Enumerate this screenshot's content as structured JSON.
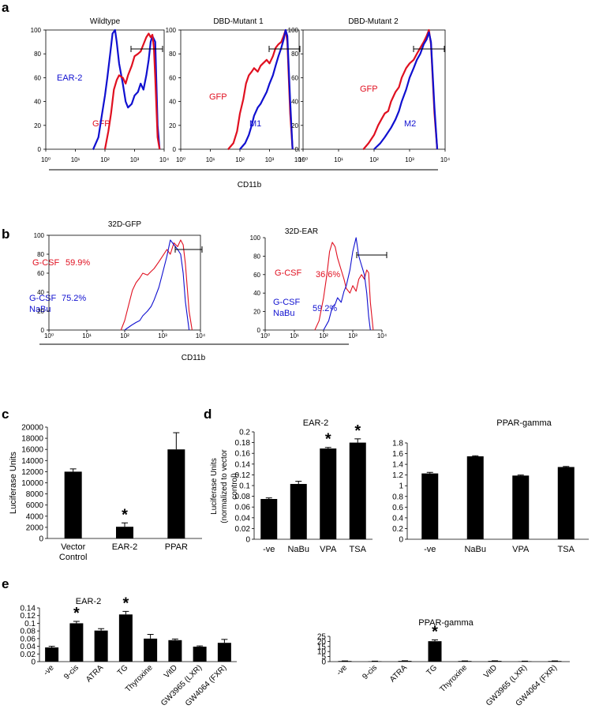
{
  "panel_letters": {
    "a": "a",
    "b": "b",
    "c": "c",
    "d": "d",
    "e": "e"
  },
  "panel_a": {
    "shared_xlabel": "CD11b",
    "plots": [
      {
        "title": "Wildtype",
        "labels": [
          "EAR-2",
          "GFP"
        ],
        "label_colors": [
          "#1010d0",
          "#e01020"
        ]
      },
      {
        "title": "DBD-Mutant 1",
        "labels": [
          "GFP",
          "M1"
        ],
        "label_colors": [
          "#e01020",
          "#1010d0"
        ]
      },
      {
        "title": "DBD-Mutant 2",
        "labels": [
          "GFP",
          "M2"
        ],
        "label_colors": [
          "#e01020",
          "#1010d0"
        ]
      }
    ]
  },
  "panel_b": {
    "shared_xlabel": "CD11b",
    "plots": [
      {
        "title": "32D-GFP",
        "red_label": "G-CSF",
        "red_pct": "59.9%",
        "blue_label_1": "G-CSF",
        "blue_label_2": "NaBu",
        "blue_pct": "75.2%"
      },
      {
        "title": "32D-EAR",
        "red_label": "G-CSF",
        "red_pct": "36.6%",
        "blue_label_1": "G-CSF",
        "blue_label_2": "NaBu",
        "blue_pct": "59.2%"
      }
    ]
  },
  "colors": {
    "red": "#e01020",
    "blue": "#1010d0",
    "bar": "#000000"
  },
  "chart_data": [
    {
      "type": "line",
      "panel": "a-1",
      "title": "Wildtype",
      "x_scale": "log",
      "xlim": [
        1,
        10000
      ],
      "ylim": [
        0,
        100
      ],
      "yticks": [
        0,
        20,
        40,
        60,
        80,
        100
      ],
      "xticks": [
        "10⁰",
        "10¹",
        "10²",
        "10³",
        "10⁴"
      ],
      "series": [
        {
          "name": "EAR-2",
          "color": "#1010d0",
          "x": [
            40,
            60,
            80,
            100,
            120,
            150,
            180,
            220,
            250,
            300,
            400,
            500,
            600,
            800,
            1000,
            1300,
            1600,
            2000,
            2500,
            3000,
            3500,
            4000,
            5000,
            6000,
            7000
          ],
          "y": [
            0,
            10,
            30,
            45,
            60,
            80,
            97,
            100,
            90,
            72,
            55,
            40,
            35,
            38,
            45,
            48,
            55,
            50,
            62,
            75,
            90,
            95,
            90,
            20,
            0
          ]
        },
        {
          "name": "GFP",
          "color": "#e01020",
          "x": [
            100,
            130,
            160,
            200,
            250,
            300,
            400,
            500,
            600,
            800,
            1000,
            1300,
            1600,
            2000,
            2500,
            3000,
            3500,
            4000,
            4500,
            5000,
            6000,
            7000
          ],
          "y": [
            0,
            15,
            30,
            50,
            58,
            62,
            60,
            55,
            62,
            70,
            78,
            80,
            82,
            88,
            94,
            97,
            94,
            96,
            85,
            60,
            10,
            0
          ]
        }
      ]
    },
    {
      "type": "line",
      "panel": "a-2",
      "title": "DBD-Mutant 1",
      "x_scale": "log",
      "xlim": [
        1,
        10000
      ],
      "ylim": [
        0,
        100
      ],
      "yticks": [
        0,
        20,
        40,
        60,
        80,
        100
      ],
      "xticks": [
        "10⁰",
        "10¹",
        "10²",
        "10³",
        "10⁴"
      ],
      "series": [
        {
          "name": "GFP",
          "color": "#e01020",
          "x": [
            40,
            60,
            80,
            100,
            130,
            160,
            200,
            250,
            300,
            400,
            500,
            600,
            800,
            1000,
            1300,
            1600,
            2000,
            2500,
            3000,
            3500,
            4000,
            5000,
            6000
          ],
          "y": [
            0,
            5,
            15,
            30,
            42,
            55,
            62,
            65,
            68,
            65,
            70,
            72,
            75,
            72,
            78,
            85,
            88,
            90,
            95,
            100,
            90,
            30,
            0
          ]
        },
        {
          "name": "M1",
          "color": "#1010d0",
          "x": [
            100,
            150,
            200,
            250,
            300,
            400,
            500,
            600,
            800,
            1000,
            1300,
            1600,
            2000,
            2500,
            3000,
            3500,
            4000,
            5000,
            6000
          ],
          "y": [
            0,
            5,
            12,
            20,
            28,
            35,
            38,
            42,
            48,
            55,
            62,
            70,
            78,
            85,
            92,
            100,
            95,
            40,
            0
          ]
        }
      ]
    },
    {
      "type": "line",
      "panel": "a-3",
      "title": "DBD-Mutant 2",
      "x_scale": "log",
      "xlim": [
        1,
        10000
      ],
      "ylim": [
        0,
        100
      ],
      "yticks": [
        0,
        20,
        40,
        60,
        80,
        100
      ],
      "xticks": [
        "10⁰",
        "10¹",
        "10²",
        "10³",
        "10⁴"
      ],
      "series": [
        {
          "name": "GFP",
          "color": "#e01020",
          "x": [
            50,
            70,
            100,
            130,
            160,
            200,
            250,
            300,
            400,
            500,
            600,
            800,
            1000,
            1300,
            1600,
            2000,
            2500,
            3000,
            3500,
            4000,
            5000,
            6000
          ],
          "y": [
            0,
            5,
            12,
            20,
            25,
            30,
            32,
            40,
            48,
            52,
            60,
            68,
            72,
            75,
            80,
            85,
            90,
            95,
            100,
            88,
            30,
            0
          ]
        },
        {
          "name": "M2",
          "color": "#1010d0",
          "x": [
            100,
            150,
            200,
            300,
            400,
            500,
            600,
            800,
            1000,
            1300,
            1600,
            2000,
            2500,
            3000,
            3500,
            4000,
            5000,
            6000
          ],
          "y": [
            0,
            5,
            10,
            18,
            25,
            32,
            40,
            50,
            60,
            68,
            75,
            80,
            88,
            92,
            98,
            90,
            35,
            0
          ]
        }
      ]
    },
    {
      "type": "line",
      "panel": "b-1",
      "title": "32D-GFP",
      "x_scale": "log",
      "xlim": [
        1,
        10000
      ],
      "ylim": [
        0,
        100
      ],
      "yticks": [
        0,
        20,
        40,
        60,
        80,
        100
      ],
      "xticks": [
        "10⁰",
        "10¹",
        "10²",
        "10³",
        "10⁴"
      ],
      "series": [
        {
          "name": "G-CSF",
          "color": "#e01020",
          "x": [
            80,
            100,
            130,
            160,
            200,
            250,
            300,
            400,
            500,
            600,
            800,
            1000,
            1300,
            1600,
            2000,
            2500,
            3000,
            3500,
            4000,
            5000,
            6000
          ],
          "y": [
            0,
            10,
            28,
            42,
            50,
            55,
            60,
            58,
            62,
            65,
            72,
            78,
            85,
            80,
            92,
            88,
            95,
            90,
            70,
            20,
            0
          ]
        },
        {
          "name": "G-CSF NaBu",
          "color": "#1010d0",
          "x": [
            100,
            150,
            200,
            250,
            300,
            400,
            500,
            600,
            800,
            1000,
            1300,
            1600,
            2000,
            2500,
            3000,
            3500,
            4000,
            5000
          ],
          "y": [
            0,
            5,
            8,
            10,
            15,
            20,
            25,
            32,
            45,
            60,
            78,
            95,
            90,
            85,
            80,
            60,
            30,
            0
          ]
        }
      ]
    },
    {
      "type": "line",
      "panel": "b-2",
      "title": "32D-EAR",
      "x_scale": "log",
      "xlim": [
        1,
        10000
      ],
      "ylim": [
        0,
        100
      ],
      "yticks": [
        0,
        20,
        40,
        60,
        80,
        100
      ],
      "xticks": [
        "10⁰",
        "10¹",
        "10²",
        "10³",
        "10⁴"
      ],
      "series": [
        {
          "name": "G-CSF",
          "color": "#e01020",
          "x": [
            50,
            70,
            100,
            130,
            160,
            200,
            250,
            300,
            400,
            500,
            600,
            800,
            1000,
            1300,
            1600,
            2000,
            2500,
            3000,
            3500,
            4000,
            5000
          ],
          "y": [
            0,
            10,
            35,
            60,
            85,
            95,
            90,
            78,
            65,
            55,
            45,
            40,
            48,
            42,
            55,
            60,
            55,
            65,
            62,
            30,
            0
          ]
        },
        {
          "name": "G-CSF NaBu",
          "color": "#1010d0",
          "x": [
            100,
            150,
            200,
            250,
            300,
            400,
            500,
            600,
            800,
            1000,
            1300,
            1600,
            2000,
            2500,
            3000,
            3500,
            4000
          ],
          "y": [
            0,
            10,
            25,
            28,
            35,
            30,
            42,
            48,
            65,
            85,
            100,
            80,
            70,
            60,
            40,
            15,
            0
          ]
        }
      ]
    },
    {
      "type": "bar",
      "panel": "c",
      "categories": [
        "Vector Control",
        "EAR-2",
        "PPAR"
      ],
      "category_lines": [
        [
          "Vector",
          "Control"
        ],
        [
          "EAR-2"
        ],
        [
          "PPAR"
        ]
      ],
      "values": [
        12000,
        2100,
        16000
      ],
      "errors": [
        500,
        700,
        3000
      ],
      "significant": [
        false,
        true,
        false
      ],
      "ylabel": "Luciferase Units",
      "ylim": [
        0,
        20000
      ],
      "yticks": [
        0,
        2000,
        4000,
        6000,
        8000,
        10000,
        12000,
        14000,
        16000,
        18000,
        20000
      ]
    },
    {
      "type": "bar",
      "panel": "d-1",
      "title": "EAR-2",
      "categories": [
        "-ve",
        "NaBu",
        "VPA",
        "TSA"
      ],
      "values": [
        0.075,
        0.103,
        0.169,
        0.18
      ],
      "errors": [
        0.002,
        0.005,
        0.002,
        0.007
      ],
      "significant": [
        false,
        false,
        true,
        true
      ],
      "ylabel_lines": [
        "Luciferase Units",
        "(normalized to vector",
        "control)"
      ],
      "ylim": [
        0,
        0.2
      ],
      "yticks": [
        0,
        0.02,
        0.04,
        0.06,
        0.08,
        0.1,
        0.12,
        0.14,
        0.16,
        0.18,
        0.2
      ]
    },
    {
      "type": "bar",
      "panel": "d-2",
      "title": "PPAR-gamma",
      "categories": [
        "-ve",
        "NaBu",
        "VPA",
        "TSA"
      ],
      "values": [
        1.23,
        1.55,
        1.19,
        1.35
      ],
      "errors": [
        0.02,
        0.01,
        0.01,
        0.01
      ],
      "significant": [
        false,
        false,
        false,
        false
      ],
      "ylim": [
        0,
        1.8
      ],
      "yticks": [
        0,
        0.2,
        0.4,
        0.6,
        0.8,
        1,
        1.2,
        1.4,
        1.6,
        1.8
      ]
    },
    {
      "type": "bar",
      "panel": "e-1",
      "title": "EAR-2",
      "categories": [
        "-ve",
        "9-cis",
        "ATRA",
        "TG",
        "Thyroxine",
        "VitD",
        "GW3965 (LXR)",
        "GW4064 (FXR)"
      ],
      "values": [
        0.037,
        0.1,
        0.081,
        0.123,
        0.06,
        0.056,
        0.039,
        0.049
      ],
      "errors": [
        0.003,
        0.005,
        0.005,
        0.008,
        0.011,
        0.003,
        0.002,
        0.009
      ],
      "significant": [
        false,
        true,
        false,
        true,
        false,
        false,
        false,
        false
      ],
      "ylim": [
        0,
        0.14
      ],
      "yticks": [
        0,
        0.02,
        0.04,
        0.06,
        0.08,
        0.1,
        0.12,
        0.14
      ]
    },
    {
      "type": "bar",
      "panel": "e-2",
      "title": "PPAR-gamma",
      "categories": [
        "-ve",
        "9-cis",
        "ATRA",
        "TG",
        "Thyroxine",
        "VitD",
        "GW3965 (LXR)",
        "GW4064 (FXR)"
      ],
      "values": [
        0.6,
        0.4,
        0.7,
        20.2,
        0.6,
        0.7,
        0.4,
        0.6
      ],
      "errors": [
        0.1,
        0.1,
        0.15,
        1.3,
        0.1,
        0.1,
        0.1,
        0.1
      ],
      "significant": [
        false,
        false,
        false,
        true,
        false,
        false,
        false,
        false
      ],
      "ylim": [
        0,
        25
      ],
      "yticks": [
        0,
        5,
        10,
        15,
        20,
        25
      ]
    }
  ]
}
